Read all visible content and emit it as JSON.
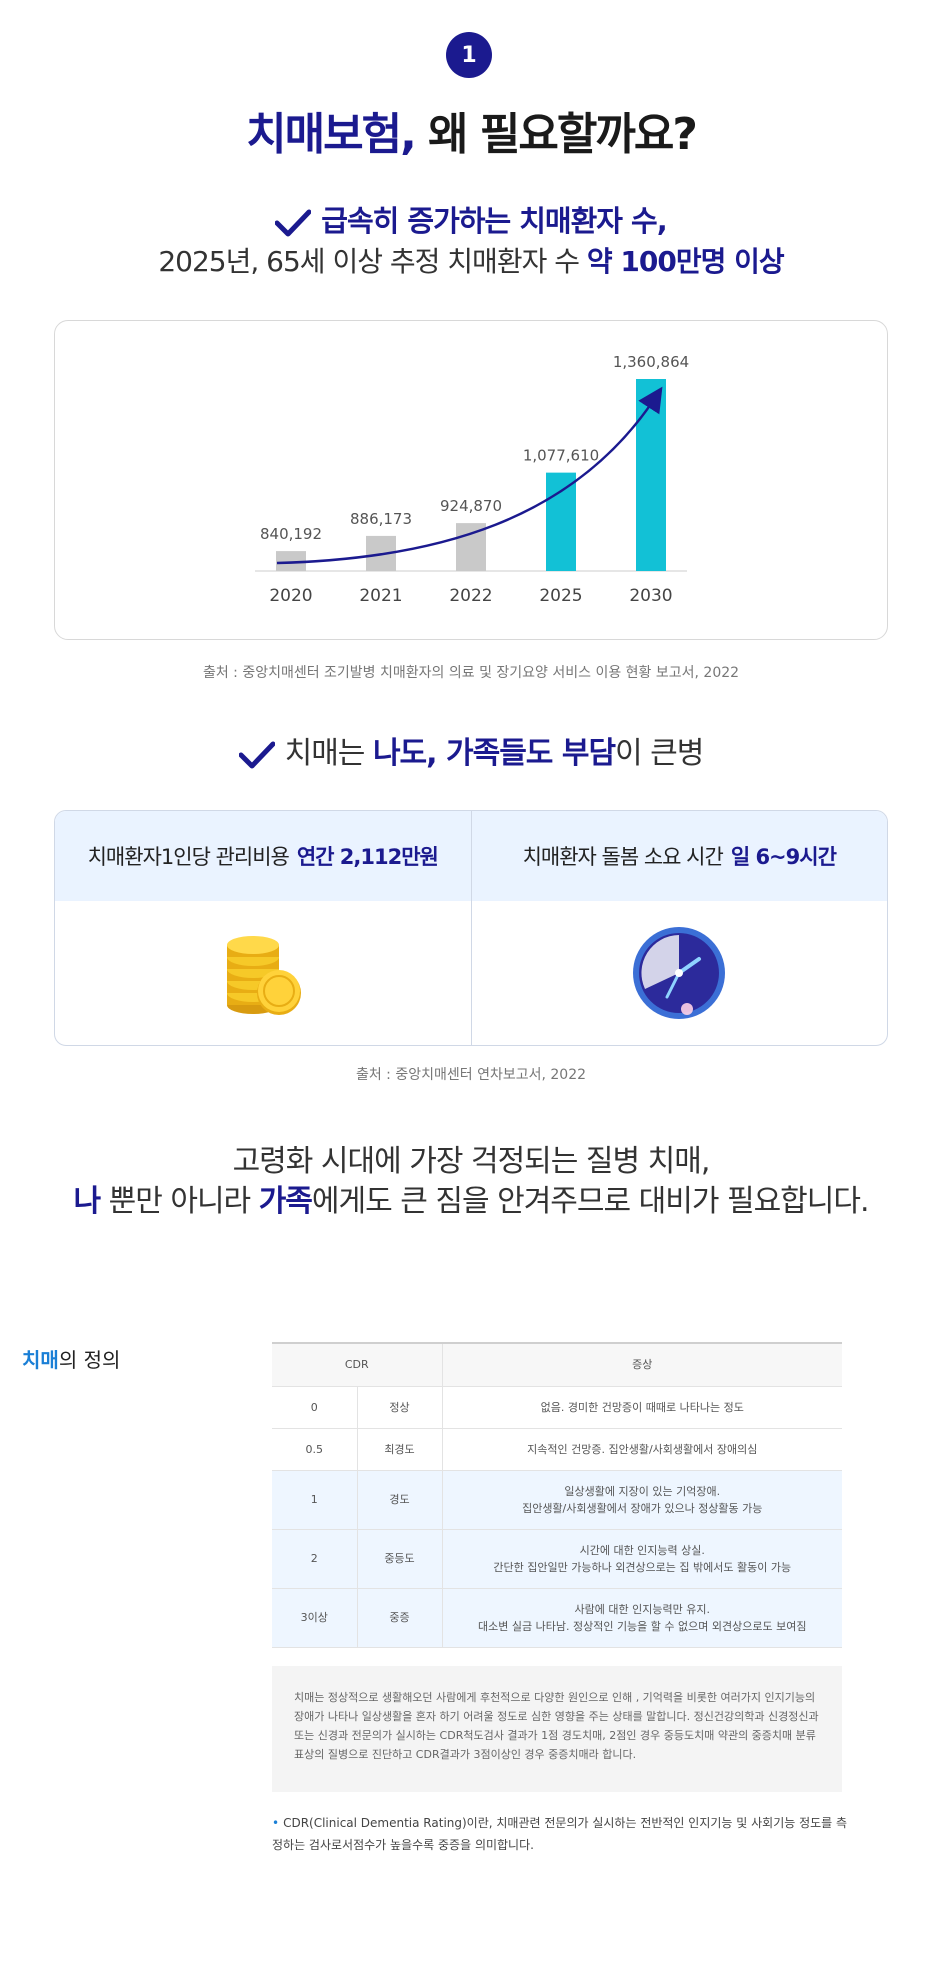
{
  "header": {
    "badge_number": "1",
    "title_accent": "치매보험,",
    "title_rest": " 왜 필요할까요?"
  },
  "section1": {
    "headline": "급속히 증가하는 치매환자 수,",
    "subline_pre": "2025년, 65세 이상 추정 치매환자 수 ",
    "subline_bold": "약 100만명 이상"
  },
  "chart_data": {
    "type": "bar",
    "categories": [
      "2020",
      "2021",
      "2022",
      "2025",
      "2030"
    ],
    "values": [
      840192,
      886173,
      924870,
      1077610,
      1360864
    ],
    "value_labels": [
      "840,192",
      "886,173",
      "924,870",
      "1,077,610",
      "1,360,864"
    ],
    "series_colors": [
      "#c9c9c9",
      "#c9c9c9",
      "#c9c9c9",
      "#12c1d6",
      "#12c1d6"
    ],
    "trend_arrow_color": "#1b1a8f",
    "title": "",
    "xlabel": "",
    "ylabel": "",
    "grid": false
  },
  "source1": "출처 : 중앙치매센터 조기발병 치매환자의 의료 및 장기요양 서비스 이용 현황 보고서, 2022",
  "section2": {
    "pre": "치매는 ",
    "bold": "나도, 가족들도 부담",
    "post": "이 큰병"
  },
  "cost": {
    "left_label": "치매환자1인당 관리비용",
    "left_value": "연간 2,112만원",
    "left_icon": "coins-icon",
    "right_label": "치매환자 돌봄 소요 시간",
    "right_value": "일 6~9시간",
    "right_icon": "clock-icon"
  },
  "source2": "출처 : 중앙치매센터 연차보고서, 2022",
  "closing": {
    "line1": "고령화 시대에 가장 걱정되는 질병 치매,",
    "line2_b1": "나",
    "line2_t1": " 뿐만 아니라 ",
    "line2_b2": "가족",
    "line2_t2": "에게도 큰 짐을 안겨주므로 대비가 필요합니다."
  },
  "definition": {
    "title_hl": "치매",
    "title_rest": "의 정의",
    "table": {
      "head_cdr": "CDR",
      "head_symptom": "증상",
      "rows": [
        {
          "score": "0",
          "level": "정상",
          "symptom1": "없음. 경미한 건망증이 때때로 나타나는 정도",
          "symptom2": ""
        },
        {
          "score": "0.5",
          "level": "최경도",
          "symptom1": "지속적인 건망증. 집안생활/사회생활에서 장애의심",
          "symptom2": ""
        },
        {
          "score": "1",
          "level": "경도",
          "symptom1": "일상생활에 지장이 있는 기억장애.",
          "symptom2": "집안생활/사회생활에서 장애가 있으나 정상활동 가능"
        },
        {
          "score": "2",
          "level": "중등도",
          "symptom1": "시간에 대한 인지능력 상실.",
          "symptom2": "간단한 집안일만 가능하나 외견상으로는 집 밖에서도 활동이 가능"
        },
        {
          "score": "3이상",
          "level": "중증",
          "symptom1": "사람에 대한 인지능력만 유지.",
          "symptom2": "대소변 실금 나타남. 정상적인 기능을 할 수 없으며 외견상으로도 보여짐"
        }
      ]
    },
    "note": "치매는 정상적으로 생활해오던 사람에게 후천적으로 다양한 원인으로 인해 , 기억력을 비롯한 여러가지 인지기능의 장애가 나타나 일상생활을 혼자 하기 어려울 정도로 심한 영향을 주는 상태를 말합니다. 정신건강의학과 신경정신과 또는 신경과 전문의가 실시하는 CDR척도검사 결과가 1점 경도치매, 2점인 경우 중등도치매 약관의 중증치매 분류표상의 질병으로 진단하고 CDR결과가 3점이상인 경우 중증치매라 합니다.",
    "footnote_bullet": "•",
    "footnote": "CDR(Clinical Dementia Rating)이란, 치매관련 전문의가 실시하는 전반적인 인지기능 및 사회기능 정도를 측정하는 검사로서점수가 높을수록 중증을 의미합니다."
  }
}
